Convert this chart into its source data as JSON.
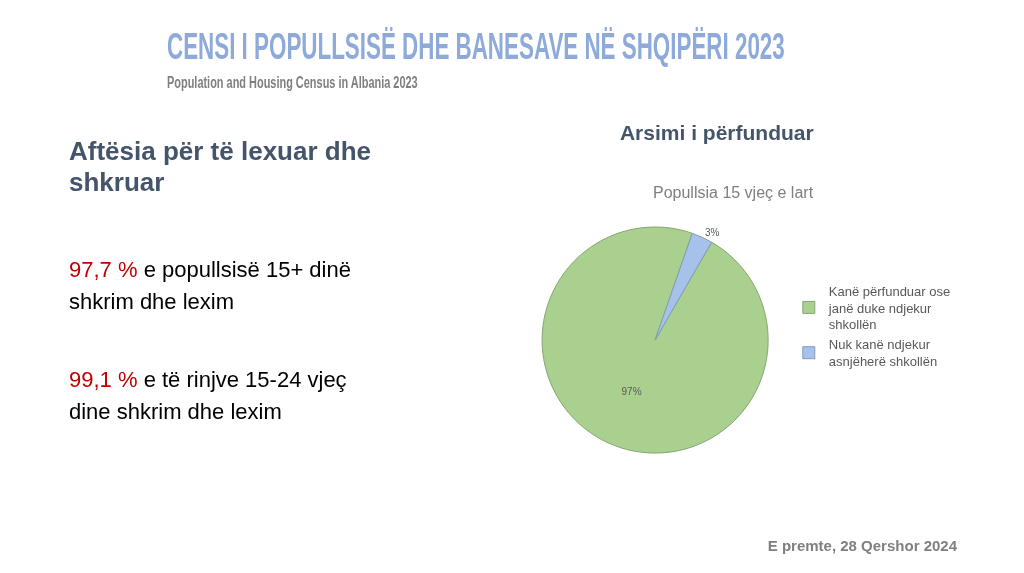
{
  "chart_data": {
    "type": "pie",
    "title": "Arsimi i përfunduar",
    "subtitle": "Popullsia 15 vjeç e lart",
    "categories": [
      "Kanë përfunduar ose janë duke ndjekur shkollën",
      "Nuk kanë ndjekur asnjëherë shkollën"
    ],
    "values": [
      97,
      3
    ],
    "colors": [
      "#a9d08e",
      "#a6c2ea"
    ],
    "value_labels": [
      "97%",
      "3%"
    ],
    "legend": "right",
    "annotations": [
      "CENSI I POPULLSISË DHE BANESAVE NË SHQIPËRI 2023",
      "Population and Housing Census in Albania 2023",
      "Aftësia për të lexuar dhe shkruar",
      "97,7 % e popullsisë 15+ dinë shkrim dhe lexim",
      "99,1 % e të rinjve 15-24 vjeç dine shkrim dhe lexim",
      "E premte, 28 Qershor 2024"
    ]
  }
}
